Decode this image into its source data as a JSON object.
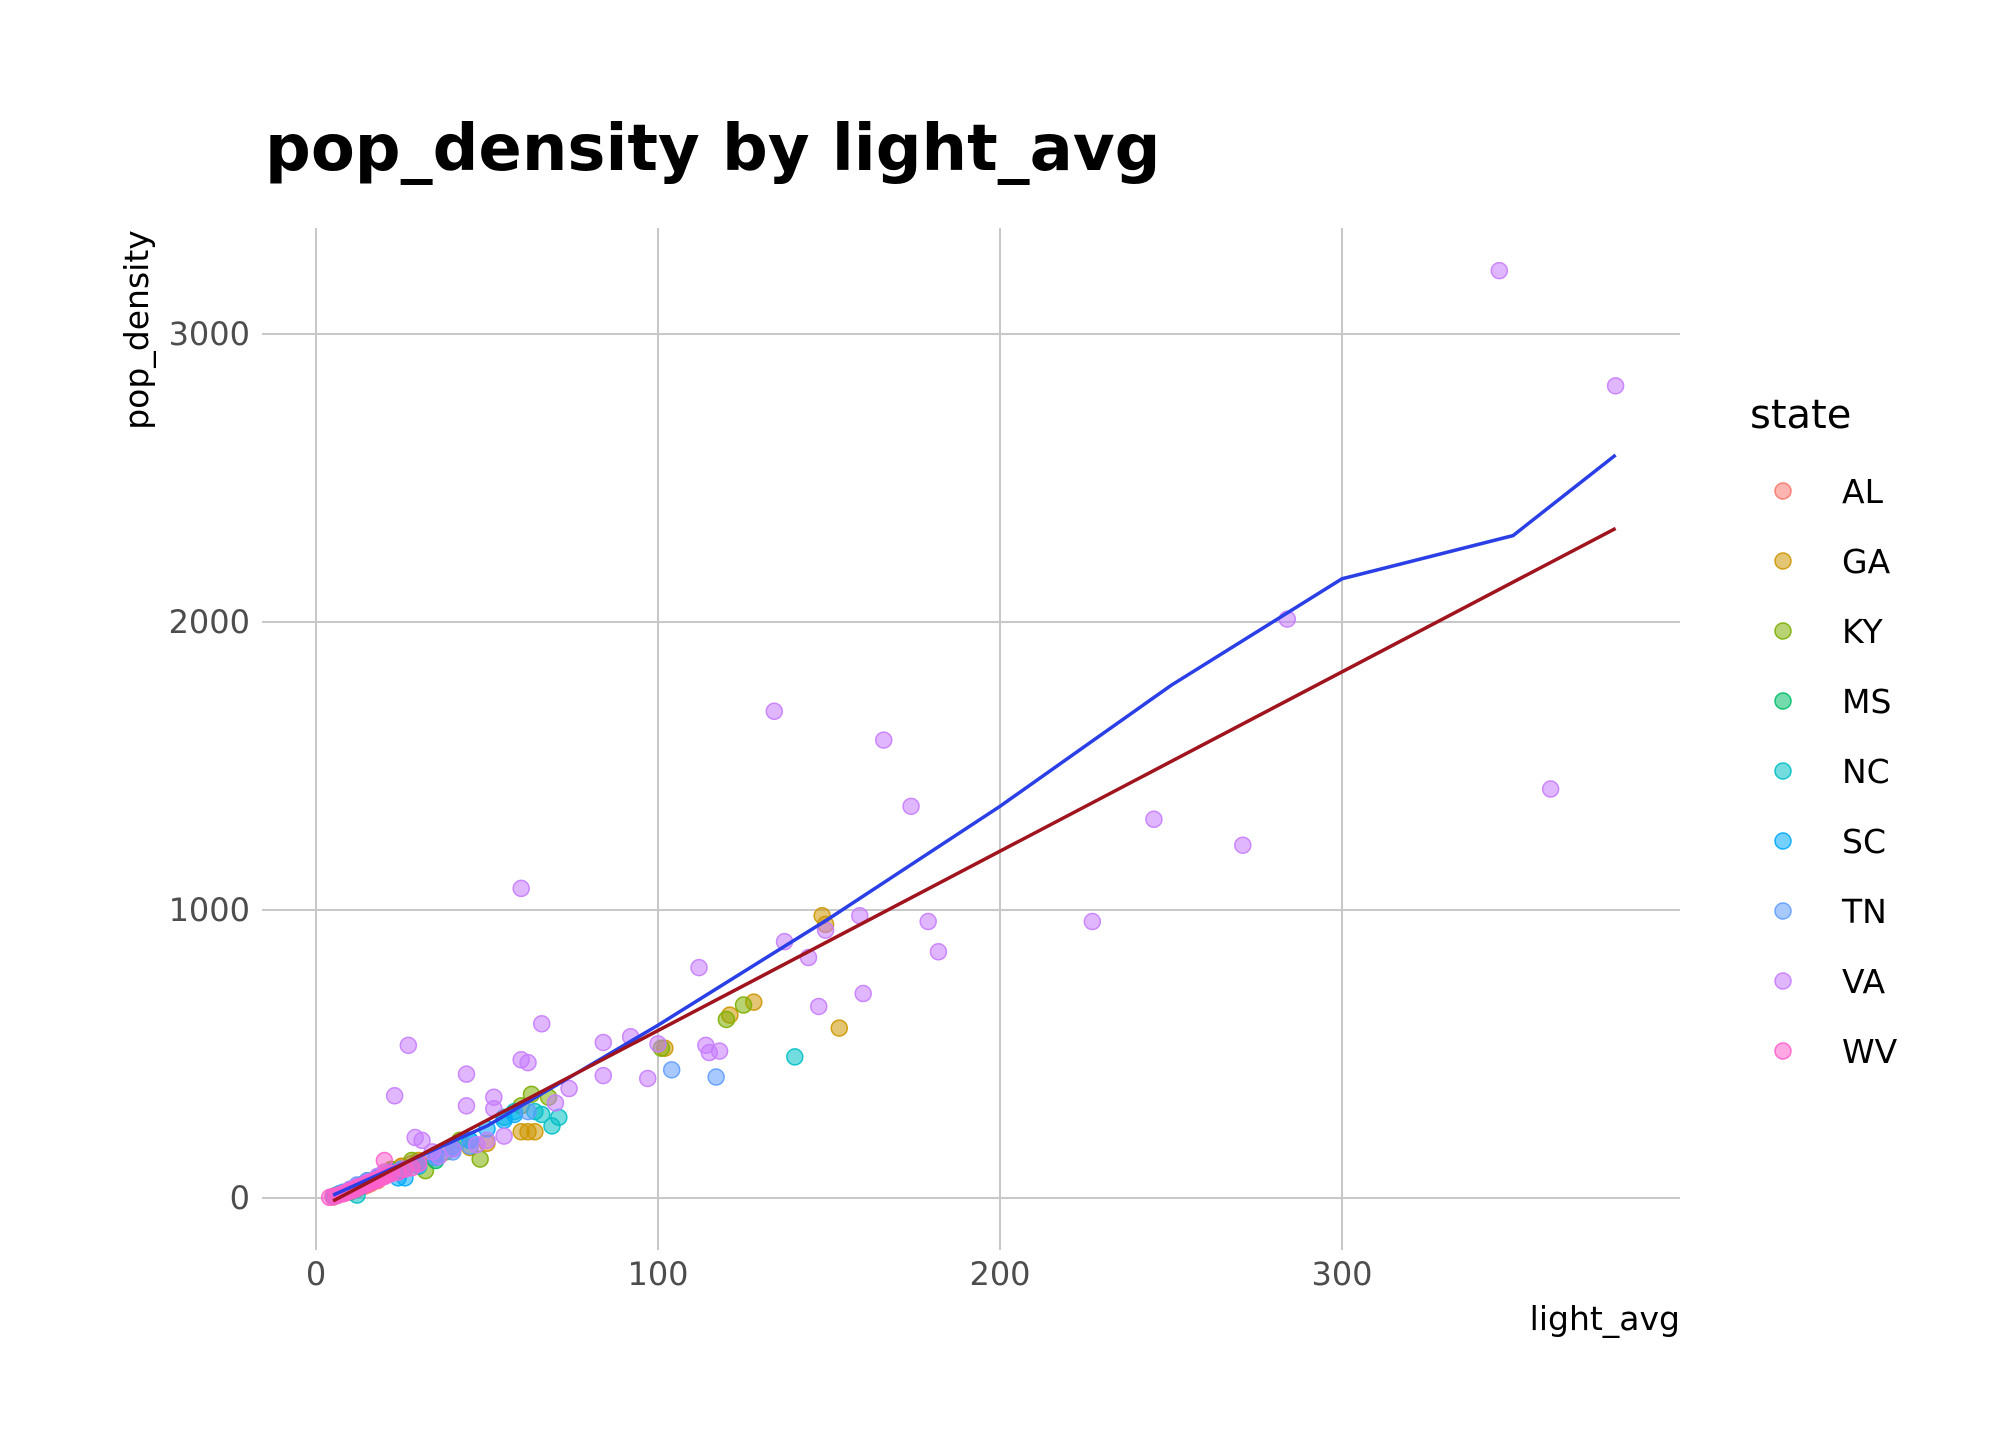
{
  "chart_data": {
    "type": "scatter",
    "title": "pop_density by light_avg",
    "xlabel": "light_avg",
    "ylabel": "pop_density",
    "xlim": [
      0,
      400
    ],
    "ylim": [
      -150,
      3380
    ],
    "x_ticks": [
      0,
      100,
      200,
      300
    ],
    "y_ticks": [
      0,
      1000,
      2000,
      3000
    ],
    "grid": true,
    "legend": {
      "title": "state",
      "placement": "right"
    },
    "series": [
      {
        "name": "AL",
        "color": "#F8766D",
        "points": [
          [
            5,
            3
          ],
          [
            8,
            15
          ],
          [
            10,
            20
          ],
          [
            12,
            30
          ],
          [
            15,
            45
          ],
          [
            18,
            60
          ],
          [
            20,
            80
          ],
          [
            22,
            95
          ],
          [
            25,
            110
          ],
          [
            28,
            120
          ],
          [
            6,
            8
          ],
          [
            14,
            40
          ],
          [
            16,
            50
          ]
        ]
      },
      {
        "name": "GA",
        "color": "#CD9600",
        "points": [
          [
            148,
            980
          ],
          [
            149,
            950
          ],
          [
            153,
            590
          ],
          [
            121,
            635
          ],
          [
            128,
            680
          ],
          [
            102,
            520
          ],
          [
            60,
            230
          ],
          [
            62,
            230
          ],
          [
            64,
            230
          ],
          [
            50,
            190
          ],
          [
            45,
            175
          ],
          [
            35,
            150
          ],
          [
            30,
            130
          ],
          [
            25,
            110
          ],
          [
            20,
            90
          ],
          [
            15,
            60
          ],
          [
            10,
            30
          ],
          [
            6,
            8
          ],
          [
            8,
            18
          ],
          [
            12,
            40
          ]
        ]
      },
      {
        "name": "KY",
        "color": "#7CAE00",
        "points": [
          [
            125,
            670
          ],
          [
            120,
            620
          ],
          [
            101,
            520
          ],
          [
            68,
            350
          ],
          [
            63,
            360
          ],
          [
            60,
            320
          ],
          [
            48,
            135
          ],
          [
            42,
            200
          ],
          [
            32,
            95
          ],
          [
            28,
            130
          ],
          [
            22,
            100
          ],
          [
            18,
            70
          ],
          [
            14,
            50
          ],
          [
            10,
            30
          ],
          [
            7,
            15
          ],
          [
            5,
            5
          ],
          [
            38,
            160
          ]
        ]
      },
      {
        "name": "MS",
        "color": "#00BE67",
        "points": [
          [
            35,
            130
          ],
          [
            30,
            120
          ],
          [
            25,
            100
          ],
          [
            20,
            80
          ],
          [
            15,
            60
          ],
          [
            12,
            40
          ],
          [
            8,
            20
          ],
          [
            6,
            10
          ],
          [
            18,
            70
          ],
          [
            22,
            90
          ]
        ]
      },
      {
        "name": "NC",
        "color": "#00BFC4",
        "points": [
          [
            140,
            490
          ],
          [
            71,
            280
          ],
          [
            69,
            250
          ],
          [
            66,
            290
          ],
          [
            64,
            300
          ],
          [
            58,
            300
          ],
          [
            55,
            280
          ],
          [
            45,
            200
          ],
          [
            40,
            180
          ],
          [
            35,
            140
          ],
          [
            30,
            110
          ],
          [
            25,
            95
          ],
          [
            20,
            75
          ],
          [
            15,
            55
          ],
          [
            10,
            30
          ],
          [
            7,
            15
          ],
          [
            5,
            5
          ],
          [
            12,
            10
          ]
        ]
      },
      {
        "name": "SC",
        "color": "#00A9FF",
        "points": [
          [
            58,
            290
          ],
          [
            55,
            270
          ],
          [
            50,
            240
          ],
          [
            45,
            200
          ],
          [
            40,
            170
          ],
          [
            35,
            150
          ],
          [
            30,
            120
          ],
          [
            26,
            70
          ],
          [
            24,
            70
          ],
          [
            22,
            90
          ],
          [
            18,
            70
          ],
          [
            14,
            50
          ],
          [
            10,
            30
          ],
          [
            7,
            15
          ],
          [
            5,
            5
          ]
        ]
      },
      {
        "name": "TN",
        "color": "#619CFF",
        "points": [
          [
            117,
            420
          ],
          [
            104,
            445
          ],
          [
            62,
            300
          ],
          [
            45,
            180
          ],
          [
            40,
            160
          ],
          [
            35,
            140
          ],
          [
            30,
            115
          ],
          [
            25,
            100
          ],
          [
            20,
            80
          ],
          [
            15,
            60
          ],
          [
            12,
            45
          ],
          [
            8,
            20
          ],
          [
            6,
            8
          ]
        ]
      },
      {
        "name": "VA",
        "color": "#C77CFF",
        "points": [
          [
            346,
            3220
          ],
          [
            380,
            2820
          ],
          [
            284,
            2010
          ],
          [
            361,
            1420
          ],
          [
            245,
            1315
          ],
          [
            271,
            1225
          ],
          [
            227,
            960
          ],
          [
            134,
            1690
          ],
          [
            166,
            1590
          ],
          [
            174,
            1360
          ],
          [
            179,
            960
          ],
          [
            182,
            855
          ],
          [
            159,
            980
          ],
          [
            160,
            710
          ],
          [
            149,
            930
          ],
          [
            147,
            665
          ],
          [
            144,
            835
          ],
          [
            137,
            890
          ],
          [
            112,
            800
          ],
          [
            114,
            530
          ],
          [
            115,
            505
          ],
          [
            118,
            510
          ],
          [
            92,
            560
          ],
          [
            100,
            535
          ],
          [
            97,
            415
          ],
          [
            84,
            540
          ],
          [
            84,
            425
          ],
          [
            60,
            1075
          ],
          [
            66,
            605
          ],
          [
            60,
            480
          ],
          [
            62,
            470
          ],
          [
            44,
            430
          ],
          [
            44,
            320
          ],
          [
            52,
            350
          ],
          [
            52,
            310
          ],
          [
            55,
            215
          ],
          [
            50,
            200
          ],
          [
            47,
            185
          ],
          [
            27,
            530
          ],
          [
            23,
            355
          ],
          [
            29,
            210
          ],
          [
            31,
            200
          ],
          [
            34,
            160
          ],
          [
            36,
            145
          ],
          [
            40,
            170
          ],
          [
            70,
            330
          ],
          [
            74,
            380
          ],
          [
            20,
            90
          ],
          [
            18,
            75
          ],
          [
            15,
            55
          ],
          [
            12,
            40
          ],
          [
            10,
            30
          ]
        ]
      },
      {
        "name": "WV",
        "color": "#FF61CC",
        "points": [
          [
            4,
            2
          ],
          [
            5,
            5
          ],
          [
            6,
            8
          ],
          [
            7,
            12
          ],
          [
            8,
            15
          ],
          [
            9,
            20
          ],
          [
            10,
            25
          ],
          [
            11,
            28
          ],
          [
            12,
            35
          ],
          [
            13,
            40
          ],
          [
            14,
            45
          ],
          [
            15,
            50
          ],
          [
            16,
            55
          ],
          [
            17,
            60
          ],
          [
            18,
            65
          ],
          [
            19,
            70
          ],
          [
            20,
            75
          ],
          [
            21,
            80
          ],
          [
            22,
            85
          ],
          [
            24,
            90
          ],
          [
            26,
            100
          ],
          [
            28,
            105
          ],
          [
            20,
            130
          ],
          [
            30,
            120
          ]
        ]
      }
    ],
    "fit_lines": [
      {
        "color": "#2A3FE5",
        "points": [
          [
            5,
            10
          ],
          [
            50,
            250
          ],
          [
            100,
            600
          ],
          [
            150,
            970
          ],
          [
            200,
            1360
          ],
          [
            250,
            1780
          ],
          [
            300,
            2150
          ],
          [
            350,
            2300
          ],
          [
            380,
            2580
          ]
        ]
      },
      {
        "color": "#A0141E",
        "points": [
          [
            5,
            -10
          ],
          [
            380,
            2325
          ]
        ]
      }
    ]
  }
}
